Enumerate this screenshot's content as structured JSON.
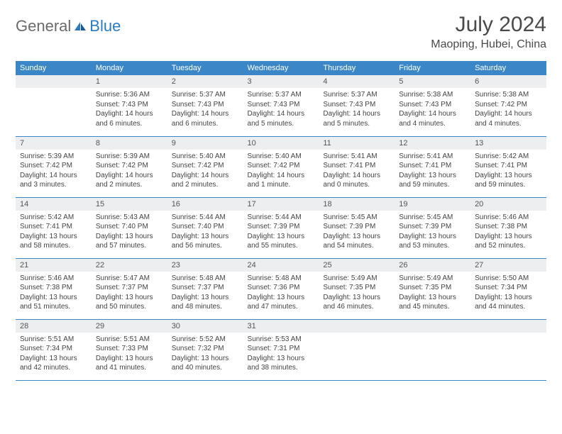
{
  "logo": {
    "text1": "General",
    "text2": "Blue"
  },
  "title": "July 2024",
  "location": "Maoping, Hubei, China",
  "colors": {
    "header_bg": "#3b86c6",
    "header_text": "#ffffff",
    "daynum_bg": "#eceeef",
    "border": "#3b86c6",
    "logo_gray": "#6b6b6b",
    "logo_blue": "#2a7bc0"
  },
  "dow": [
    "Sunday",
    "Monday",
    "Tuesday",
    "Wednesday",
    "Thursday",
    "Friday",
    "Saturday"
  ],
  "weeks": [
    [
      {
        "n": "",
        "sr": "",
        "ss": "",
        "dl": ""
      },
      {
        "n": "1",
        "sr": "Sunrise: 5:36 AM",
        "ss": "Sunset: 7:43 PM",
        "dl": "Daylight: 14 hours and 6 minutes."
      },
      {
        "n": "2",
        "sr": "Sunrise: 5:37 AM",
        "ss": "Sunset: 7:43 PM",
        "dl": "Daylight: 14 hours and 6 minutes."
      },
      {
        "n": "3",
        "sr": "Sunrise: 5:37 AM",
        "ss": "Sunset: 7:43 PM",
        "dl": "Daylight: 14 hours and 5 minutes."
      },
      {
        "n": "4",
        "sr": "Sunrise: 5:37 AM",
        "ss": "Sunset: 7:43 PM",
        "dl": "Daylight: 14 hours and 5 minutes."
      },
      {
        "n": "5",
        "sr": "Sunrise: 5:38 AM",
        "ss": "Sunset: 7:43 PM",
        "dl": "Daylight: 14 hours and 4 minutes."
      },
      {
        "n": "6",
        "sr": "Sunrise: 5:38 AM",
        "ss": "Sunset: 7:42 PM",
        "dl": "Daylight: 14 hours and 4 minutes."
      }
    ],
    [
      {
        "n": "7",
        "sr": "Sunrise: 5:39 AM",
        "ss": "Sunset: 7:42 PM",
        "dl": "Daylight: 14 hours and 3 minutes."
      },
      {
        "n": "8",
        "sr": "Sunrise: 5:39 AM",
        "ss": "Sunset: 7:42 PM",
        "dl": "Daylight: 14 hours and 2 minutes."
      },
      {
        "n": "9",
        "sr": "Sunrise: 5:40 AM",
        "ss": "Sunset: 7:42 PM",
        "dl": "Daylight: 14 hours and 2 minutes."
      },
      {
        "n": "10",
        "sr": "Sunrise: 5:40 AM",
        "ss": "Sunset: 7:42 PM",
        "dl": "Daylight: 14 hours and 1 minute."
      },
      {
        "n": "11",
        "sr": "Sunrise: 5:41 AM",
        "ss": "Sunset: 7:41 PM",
        "dl": "Daylight: 14 hours and 0 minutes."
      },
      {
        "n": "12",
        "sr": "Sunrise: 5:41 AM",
        "ss": "Sunset: 7:41 PM",
        "dl": "Daylight: 13 hours and 59 minutes."
      },
      {
        "n": "13",
        "sr": "Sunrise: 5:42 AM",
        "ss": "Sunset: 7:41 PM",
        "dl": "Daylight: 13 hours and 59 minutes."
      }
    ],
    [
      {
        "n": "14",
        "sr": "Sunrise: 5:42 AM",
        "ss": "Sunset: 7:41 PM",
        "dl": "Daylight: 13 hours and 58 minutes."
      },
      {
        "n": "15",
        "sr": "Sunrise: 5:43 AM",
        "ss": "Sunset: 7:40 PM",
        "dl": "Daylight: 13 hours and 57 minutes."
      },
      {
        "n": "16",
        "sr": "Sunrise: 5:44 AM",
        "ss": "Sunset: 7:40 PM",
        "dl": "Daylight: 13 hours and 56 minutes."
      },
      {
        "n": "17",
        "sr": "Sunrise: 5:44 AM",
        "ss": "Sunset: 7:39 PM",
        "dl": "Daylight: 13 hours and 55 minutes."
      },
      {
        "n": "18",
        "sr": "Sunrise: 5:45 AM",
        "ss": "Sunset: 7:39 PM",
        "dl": "Daylight: 13 hours and 54 minutes."
      },
      {
        "n": "19",
        "sr": "Sunrise: 5:45 AM",
        "ss": "Sunset: 7:39 PM",
        "dl": "Daylight: 13 hours and 53 minutes."
      },
      {
        "n": "20",
        "sr": "Sunrise: 5:46 AM",
        "ss": "Sunset: 7:38 PM",
        "dl": "Daylight: 13 hours and 52 minutes."
      }
    ],
    [
      {
        "n": "21",
        "sr": "Sunrise: 5:46 AM",
        "ss": "Sunset: 7:38 PM",
        "dl": "Daylight: 13 hours and 51 minutes."
      },
      {
        "n": "22",
        "sr": "Sunrise: 5:47 AM",
        "ss": "Sunset: 7:37 PM",
        "dl": "Daylight: 13 hours and 50 minutes."
      },
      {
        "n": "23",
        "sr": "Sunrise: 5:48 AM",
        "ss": "Sunset: 7:37 PM",
        "dl": "Daylight: 13 hours and 48 minutes."
      },
      {
        "n": "24",
        "sr": "Sunrise: 5:48 AM",
        "ss": "Sunset: 7:36 PM",
        "dl": "Daylight: 13 hours and 47 minutes."
      },
      {
        "n": "25",
        "sr": "Sunrise: 5:49 AM",
        "ss": "Sunset: 7:35 PM",
        "dl": "Daylight: 13 hours and 46 minutes."
      },
      {
        "n": "26",
        "sr": "Sunrise: 5:49 AM",
        "ss": "Sunset: 7:35 PM",
        "dl": "Daylight: 13 hours and 45 minutes."
      },
      {
        "n": "27",
        "sr": "Sunrise: 5:50 AM",
        "ss": "Sunset: 7:34 PM",
        "dl": "Daylight: 13 hours and 44 minutes."
      }
    ],
    [
      {
        "n": "28",
        "sr": "Sunrise: 5:51 AM",
        "ss": "Sunset: 7:34 PM",
        "dl": "Daylight: 13 hours and 42 minutes."
      },
      {
        "n": "29",
        "sr": "Sunrise: 5:51 AM",
        "ss": "Sunset: 7:33 PM",
        "dl": "Daylight: 13 hours and 41 minutes."
      },
      {
        "n": "30",
        "sr": "Sunrise: 5:52 AM",
        "ss": "Sunset: 7:32 PM",
        "dl": "Daylight: 13 hours and 40 minutes."
      },
      {
        "n": "31",
        "sr": "Sunrise: 5:53 AM",
        "ss": "Sunset: 7:31 PM",
        "dl": "Daylight: 13 hours and 38 minutes."
      },
      {
        "n": "",
        "sr": "",
        "ss": "",
        "dl": ""
      },
      {
        "n": "",
        "sr": "",
        "ss": "",
        "dl": ""
      },
      {
        "n": "",
        "sr": "",
        "ss": "",
        "dl": ""
      }
    ]
  ]
}
